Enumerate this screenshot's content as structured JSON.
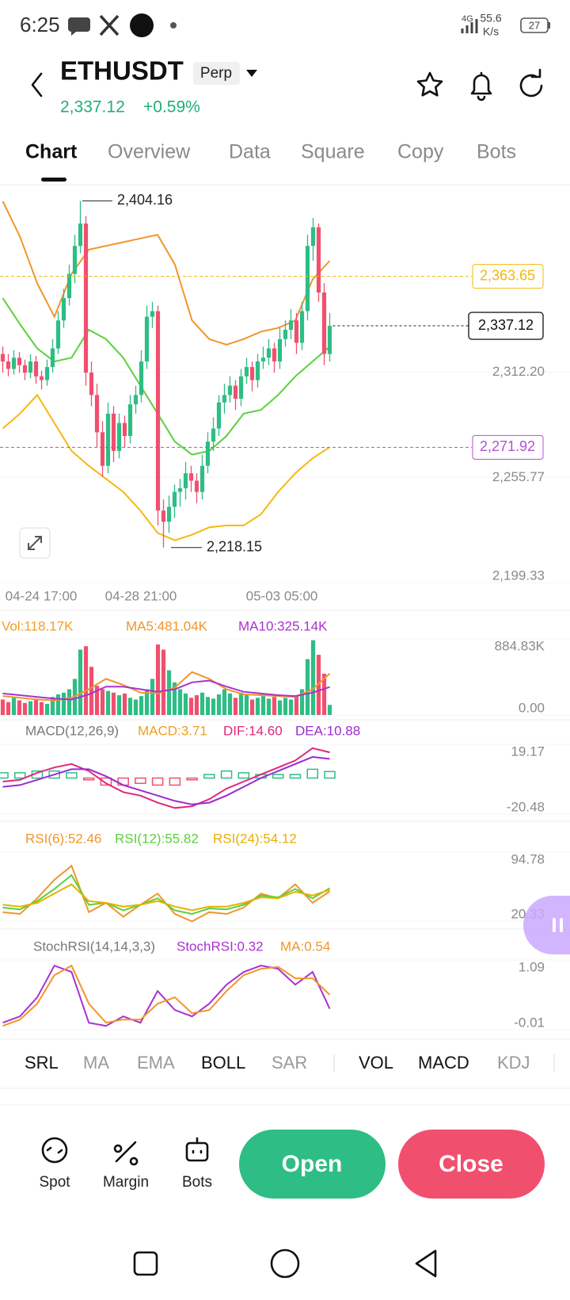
{
  "status_bar": {
    "time": "6:25",
    "network": "4G",
    "speed": "55.6",
    "speed_unit": "K/s",
    "battery": "27"
  },
  "header": {
    "symbol": "ETHUSDT",
    "badge": "Perp",
    "price": "2,337.12",
    "change": "+0.59%"
  },
  "tabs": [
    "Chart",
    "Overview",
    "Data",
    "Square",
    "Copy",
    "Bots"
  ],
  "chart_data": [
    {
      "type": "candlestick",
      "up_color": "#2ebd85",
      "down_color": "#f0506e",
      "xtick_labels": [
        "04-24 17:00",
        "04-28 21:00",
        "05-03 05:00"
      ],
      "ylim": [
        2199.33,
        2412
      ],
      "yticks": [
        {
          "value": 2312.2,
          "label": "2,312.20"
        },
        {
          "value": 2255.77,
          "label": "2,255.77"
        },
        {
          "value": 2199.33,
          "label": "2,199.33"
        }
      ],
      "candles": [
        [
          2322,
          2326,
          2312,
          2318
        ],
        [
          2318,
          2322,
          2310,
          2314
        ],
        [
          2314,
          2324,
          2311,
          2320
        ],
        [
          2320,
          2323,
          2312,
          2316
        ],
        [
          2316,
          2319,
          2308,
          2312
        ],
        [
          2312,
          2322,
          2309,
          2318
        ],
        [
          2318,
          2321,
          2306,
          2310
        ],
        [
          2310,
          2313,
          2303,
          2308
        ],
        [
          2308,
          2319,
          2305,
          2315
        ],
        [
          2315,
          2330,
          2312,
          2325
        ],
        [
          2325,
          2345,
          2322,
          2340
        ],
        [
          2340,
          2357,
          2336,
          2352
        ],
        [
          2352,
          2370,
          2348,
          2365
        ],
        [
          2365,
          2386,
          2360,
          2380
        ],
        [
          2380,
          2404.16,
          2376,
          2392
        ],
        [
          2392,
          2396,
          2305,
          2312
        ],
        [
          2312,
          2318,
          2294,
          2300
        ],
        [
          2300,
          2306,
          2272,
          2280
        ],
        [
          2280,
          2286,
          2256,
          2262
        ],
        [
          2262,
          2296,
          2258,
          2290
        ],
        [
          2290,
          2294,
          2264,
          2270
        ],
        [
          2270,
          2290,
          2266,
          2285
        ],
        [
          2285,
          2289,
          2272,
          2278
        ],
        [
          2278,
          2300,
          2274,
          2295
        ],
        [
          2295,
          2305,
          2290,
          2300
        ],
        [
          2300,
          2324,
          2296,
          2318
        ],
        [
          2318,
          2348,
          2314,
          2342
        ],
        [
          2342,
          2350,
          2336,
          2345
        ],
        [
          2345,
          2348,
          2230,
          2238
        ],
        [
          2238,
          2244,
          2218.15,
          2232
        ],
        [
          2232,
          2246,
          2226,
          2240
        ],
        [
          2240,
          2252,
          2234,
          2248
        ],
        [
          2248,
          2255,
          2240,
          2250
        ],
        [
          2250,
          2264,
          2244,
          2258
        ],
        [
          2258,
          2262,
          2248,
          2254
        ],
        [
          2254,
          2258,
          2242,
          2248
        ],
        [
          2248,
          2268,
          2244,
          2262
        ],
        [
          2262,
          2280,
          2258,
          2275
        ],
        [
          2275,
          2288,
          2270,
          2282
        ],
        [
          2282,
          2300,
          2278,
          2296
        ],
        [
          2296,
          2306,
          2290,
          2300
        ],
        [
          2300,
          2310,
          2296,
          2305
        ],
        [
          2305,
          2308,
          2292,
          2298
        ],
        [
          2298,
          2314,
          2294,
          2310
        ],
        [
          2310,
          2320,
          2306,
          2315
        ],
        [
          2315,
          2318,
          2302,
          2308
        ],
        [
          2308,
          2322,
          2304,
          2318
        ],
        [
          2318,
          2326,
          2314,
          2320
        ],
        [
          2320,
          2330,
          2316,
          2325
        ],
        [
          2325,
          2328,
          2312,
          2318
        ],
        [
          2318,
          2336,
          2314,
          2330
        ],
        [
          2330,
          2340,
          2326,
          2335
        ],
        [
          2335,
          2346,
          2330,
          2340
        ],
        [
          2340,
          2344,
          2322,
          2328
        ],
        [
          2328,
          2350,
          2324,
          2345
        ],
        [
          2345,
          2386,
          2340,
          2380
        ],
        [
          2380,
          2395,
          2372,
          2390
        ],
        [
          2390,
          2392,
          2350,
          2355
        ],
        [
          2355,
          2360,
          2316,
          2322
        ],
        [
          2322,
          2344,
          2318,
          2337.12
        ]
      ],
      "series": [
        {
          "color": "#f0962a",
          "values": [
            2404,
            2385,
            2360,
            2342,
            2365,
            2378,
            2380,
            2382,
            2384,
            2386,
            2370,
            2340,
            2330,
            2327,
            2330,
            2334,
            2336,
            2340,
            2362,
            2372
          ]
        },
        {
          "color": "#5ad13c",
          "values": [
            2352,
            2338,
            2325,
            2318,
            2320,
            2335,
            2330,
            2320,
            2305,
            2290,
            2275,
            2268,
            2270,
            2278,
            2290,
            2292,
            2300,
            2310,
            2318,
            2326
          ]
        },
        {
          "color": "#f5b90f",
          "values": [
            2282,
            2290,
            2300,
            2285,
            2270,
            2262,
            2255,
            2248,
            2238,
            2226,
            2222,
            2225,
            2229,
            2230,
            2230,
            2236,
            2248,
            2258,
            2266,
            2272
          ]
        }
      ],
      "markers": {
        "high": {
          "value": 2404.16,
          "label": "2,404.16"
        },
        "low": {
          "value": 2218.15,
          "label": "2,218.15"
        },
        "last": {
          "value": 2337.12,
          "label": "2,337.12"
        },
        "levels": [
          {
            "value": 2363.65,
            "label": "2,363.65",
            "color": "#f0b90b"
          },
          {
            "value": 2271.92,
            "label": "2,271.92",
            "color": "#b44fd6"
          }
        ]
      }
    },
    {
      "type": "bar",
      "ylim": [
        0,
        884.83
      ],
      "yticks": [
        {
          "value": 884.83,
          "label": "884.83K"
        },
        {
          "value": 0,
          "label": "0.00"
        }
      ],
      "bars": {
        "name": "Vol:118.17K",
        "color": "#f0a020",
        "values": [
          180,
          150,
          200,
          170,
          140,
          160,
          190,
          150,
          130,
          210,
          240,
          260,
          300,
          420,
          760,
          800,
          560,
          340,
          300,
          280,
          260,
          230,
          250,
          200,
          180,
          220,
          300,
          420,
          820,
          760,
          520,
          380,
          300,
          250,
          200,
          230,
          260,
          210,
          190,
          240,
          300,
          250,
          200,
          260,
          230,
          180,
          200,
          220,
          190,
          210,
          170,
          200,
          180,
          230,
          300,
          650,
          870,
          700,
          480,
          118.17
        ]
      },
      "series": [
        {
          "name": "MA5:481.04K",
          "color": "#f0962a",
          "values": [
            220,
            200,
            180,
            170,
            200,
            300,
            420,
            350,
            260,
            250,
            320,
            500,
            420,
            300,
            240,
            230,
            220,
            210,
            300,
            481.04
          ]
        },
        {
          "name": "MA10:325.14K",
          "color": "#a832d0",
          "values": [
            250,
            230,
            210,
            190,
            180,
            240,
            330,
            330,
            300,
            270,
            300,
            380,
            400,
            330,
            270,
            250,
            230,
            220,
            260,
            325.14
          ]
        }
      ]
    },
    {
      "type": "combo",
      "title": "MACD(12,26,9)",
      "ylim": [
        -20.48,
        19.17
      ],
      "yticks": [
        19.17,
        -20.48
      ],
      "bars": {
        "name": "MACD:3.71",
        "color": "#f0a020",
        "values": [
          3,
          3,
          4,
          4,
          3,
          -1,
          -4,
          -4,
          -3,
          -4,
          -4,
          -1,
          2,
          4,
          3,
          2,
          2,
          2,
          5,
          3.71
        ]
      },
      "series": [
        {
          "name": "DIF:14.60",
          "color": "#e0287a",
          "values": [
            -2,
            -1,
            3,
            6,
            8,
            4,
            -3,
            -8,
            -10,
            -14,
            -17,
            -16,
            -12,
            -6,
            -2,
            2,
            6,
            10,
            17,
            14.6
          ]
        },
        {
          "name": "DEA:10.88",
          "color": "#9a2bd0",
          "values": [
            -5,
            -4,
            -1,
            2,
            5,
            5,
            1,
            -4,
            -7,
            -10,
            -13,
            -15,
            -14,
            -10,
            -5,
            0,
            4,
            8,
            12,
            10.88
          ]
        }
      ]
    },
    {
      "type": "line",
      "ylim": [
        20.33,
        94.78
      ],
      "yticks": [
        94.78,
        20.33
      ],
      "series": [
        {
          "name": "RSI(6):52.46",
          "color": "#f0962a",
          "values": [
            30,
            28,
            45,
            65,
            80,
            30,
            40,
            25,
            38,
            50,
            28,
            20,
            30,
            28,
            35,
            50,
            45,
            60,
            40,
            52.46
          ]
        },
        {
          "name": "RSI(12):55.82",
          "color": "#5ad13c",
          "values": [
            35,
            33,
            42,
            55,
            70,
            38,
            40,
            32,
            38,
            45,
            32,
            28,
            34,
            33,
            38,
            48,
            46,
            55,
            45,
            55.82
          ]
        },
        {
          "name": "RSI(24):54.12",
          "color": "#e8b000",
          "values": [
            38,
            36,
            40,
            50,
            60,
            42,
            40,
            36,
            38,
            42,
            36,
            32,
            36,
            36,
            40,
            46,
            45,
            52,
            48,
            54.12
          ]
        }
      ]
    },
    {
      "type": "line",
      "title": "StochRSI(14,14,3,3)",
      "ylim": [
        -0.01,
        1.09
      ],
      "yticks": [
        1.09,
        -0.01
      ],
      "series": [
        {
          "name": "StochRSI:0.32",
          "color": "#a832d0",
          "values": [
            0.1,
            0.2,
            0.5,
            1.0,
            0.9,
            0.1,
            0.05,
            0.2,
            0.1,
            0.6,
            0.3,
            0.2,
            0.4,
            0.7,
            0.9,
            1.0,
            0.95,
            0.7,
            0.9,
            0.32
          ]
        },
        {
          "name": "MA:0.54",
          "color": "#f0962a",
          "values": [
            0.05,
            0.15,
            0.4,
            0.85,
            1.0,
            0.4,
            0.1,
            0.15,
            0.15,
            0.4,
            0.5,
            0.25,
            0.3,
            0.6,
            0.85,
            0.95,
            0.98,
            0.8,
            0.8,
            0.54
          ]
        }
      ]
    }
  ],
  "indicator_tabs": [
    "SRL",
    "MA",
    "EMA",
    "BOLL",
    "SAR",
    "VOL",
    "MACD",
    "KDJ"
  ],
  "actions": {
    "shortcuts": [
      "Spot",
      "Margin",
      "Bots"
    ],
    "open": "Open",
    "close": "Close"
  }
}
